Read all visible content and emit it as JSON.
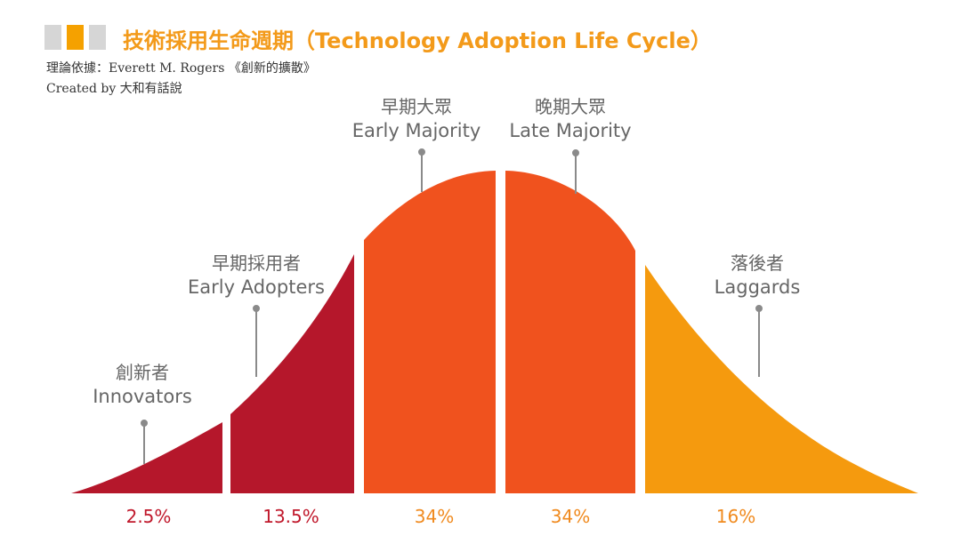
{
  "header": {
    "title": "技術採用生命週期（Technology Adoption Life Cycle）",
    "source_line": "理論依據：Everett M. Rogers 《創新的擴散》",
    "credit_line": "Created by 大和有話說",
    "colors": {
      "square_gray": "#d6d6d6",
      "square_orange": "#f5a100",
      "title": "#f39a1a"
    }
  },
  "segments": [
    {
      "zh": "創新者",
      "en": "Innovators",
      "percent": "2.5%",
      "share": 2.5,
      "color": "#b5172b",
      "pct_color": "#c0182b"
    },
    {
      "zh": "早期採用者",
      "en": "Early Adopters",
      "percent": "13.5%",
      "share": 13.5,
      "color": "#b5172b",
      "pct_color": "#c0182b"
    },
    {
      "zh": "早期大眾",
      "en": "Early Majority",
      "percent": "34%",
      "share": 34,
      "color": "#f0521e",
      "pct_color": "#f08a1e"
    },
    {
      "zh": "晚期大眾",
      "en": "Late Majority",
      "percent": "34%",
      "share": 34,
      "color": "#f0521e",
      "pct_color": "#f08a1e"
    },
    {
      "zh": "落後者",
      "en": "Laggards",
      "percent": "16%",
      "share": 16,
      "color": "#f59a0e",
      "pct_color": "#f08a1e"
    }
  ]
}
